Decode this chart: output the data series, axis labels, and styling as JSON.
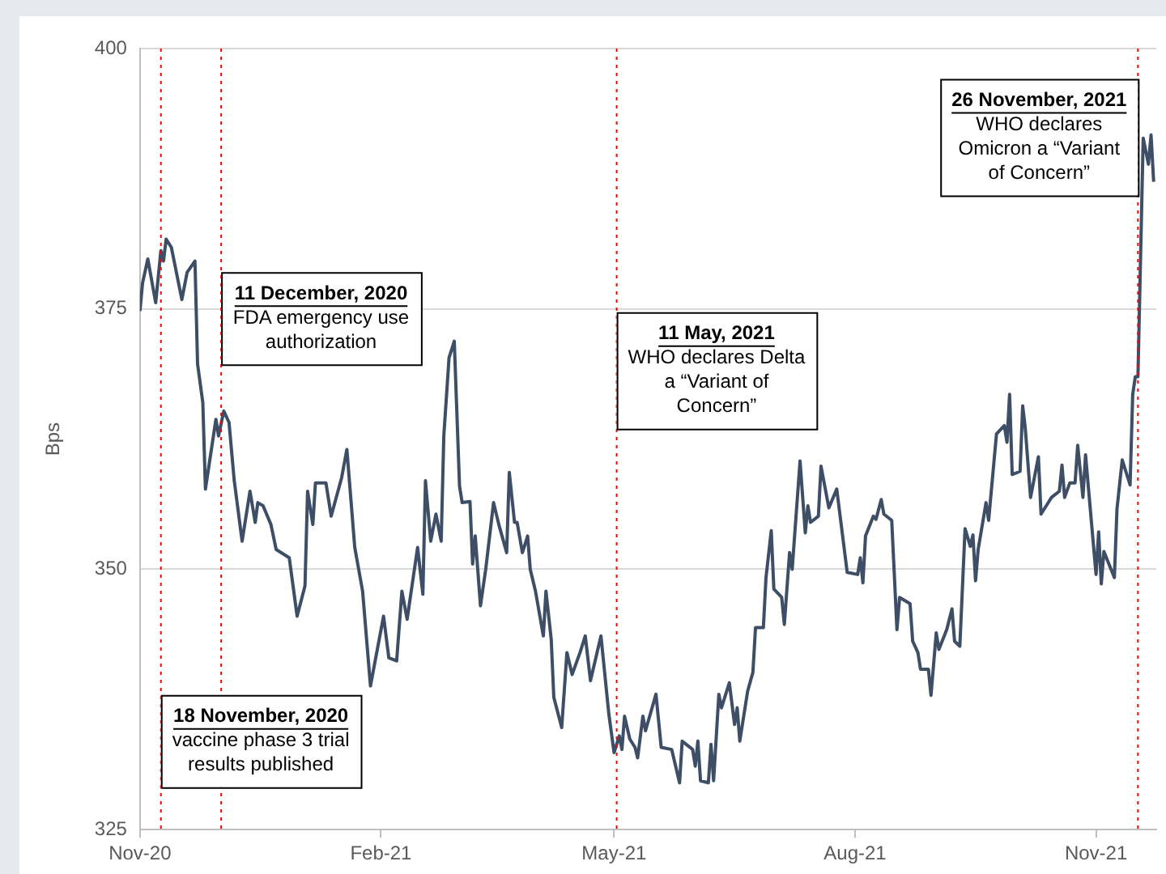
{
  "chart_data": {
    "type": "line",
    "ylabel": "Bps",
    "ylim": [
      325,
      400
    ],
    "yticks": [
      325,
      350,
      375,
      400
    ],
    "xlim": [
      "2020-11-10",
      "2021-12-03"
    ],
    "xticks": [
      {
        "value": "2020-11-10",
        "label": "Nov-20"
      },
      {
        "value": "2021-02-10",
        "label": "Feb-21"
      },
      {
        "value": "2021-05-10",
        "label": "May-21"
      },
      {
        "value": "2021-08-10",
        "label": "Aug-21"
      },
      {
        "value": "2021-11-10",
        "label": "Nov-21"
      }
    ],
    "grid": "y",
    "marker": "none",
    "line_style": "solid",
    "x": [
      "2020-11-10",
      "2020-11-11",
      "2020-11-13",
      "2020-11-16",
      "2020-11-18",
      "2020-11-19",
      "2020-11-20",
      "2020-11-22",
      "2020-11-26",
      "2020-11-28",
      "2020-12-01",
      "2020-12-02",
      "2020-12-04",
      "2020-12-05",
      "2020-12-09",
      "2020-12-10",
      "2020-12-12",
      "2020-12-14",
      "2020-12-16",
      "2020-12-19",
      "2020-12-22",
      "2020-12-24",
      "2020-12-25",
      "2020-12-27",
      "2020-12-30",
      "2021-01-01",
      "2021-01-06",
      "2021-01-09",
      "2021-01-12",
      "2021-01-13",
      "2021-01-15",
      "2021-01-16",
      "2021-01-20",
      "2021-01-22",
      "2021-01-26",
      "2021-01-28",
      "2021-01-31",
      "2021-02-03",
      "2021-02-06",
      "2021-02-11",
      "2021-02-13",
      "2021-02-16",
      "2021-02-18",
      "2021-02-20",
      "2021-02-24",
      "2021-02-26",
      "2021-02-27",
      "2021-03-01",
      "2021-03-03",
      "2021-03-05",
      "2021-03-06",
      "2021-03-08",
      "2021-03-10",
      "2021-03-12",
      "2021-03-13",
      "2021-03-16",
      "2021-03-17",
      "2021-03-18",
      "2021-03-20",
      "2021-03-22",
      "2021-03-25",
      "2021-03-27",
      "2021-03-30",
      "2021-03-31",
      "2021-04-02",
      "2021-04-03",
      "2021-04-05",
      "2021-04-07",
      "2021-04-08",
      "2021-04-10",
      "2021-04-13",
      "2021-04-14",
      "2021-04-16",
      "2021-04-17",
      "2021-04-20",
      "2021-04-22",
      "2021-04-24",
      "2021-04-27",
      "2021-04-29",
      "2021-05-01",
      "2021-05-05",
      "2021-05-08",
      "2021-05-10",
      "2021-05-12",
      "2021-05-13",
      "2021-05-14",
      "2021-05-16",
      "2021-05-18",
      "2021-05-19",
      "2021-05-21",
      "2021-05-22",
      "2021-05-26",
      "2021-05-28",
      "2021-06-01",
      "2021-06-04",
      "2021-06-05",
      "2021-06-09",
      "2021-06-10",
      "2021-06-11",
      "2021-06-12",
      "2021-06-15",
      "2021-06-16",
      "2021-06-17",
      "2021-06-19",
      "2021-06-20",
      "2021-06-23",
      "2021-06-25",
      "2021-06-26",
      "2021-06-27",
      "2021-06-30",
      "2021-07-02",
      "2021-07-03",
      "2021-07-06",
      "2021-07-07",
      "2021-07-09",
      "2021-07-10",
      "2021-07-13",
      "2021-07-14",
      "2021-07-16",
      "2021-07-17",
      "2021-07-20",
      "2021-07-22",
      "2021-07-23",
      "2021-07-24",
      "2021-07-27",
      "2021-07-28",
      "2021-07-31",
      "2021-08-03",
      "2021-08-07",
      "2021-08-11",
      "2021-08-12",
      "2021-08-13",
      "2021-08-14",
      "2021-08-17",
      "2021-08-18",
      "2021-08-20",
      "2021-08-21",
      "2021-08-24",
      "2021-08-26",
      "2021-08-27",
      "2021-08-31",
      "2021-09-01",
      "2021-09-03",
      "2021-09-04",
      "2021-09-07",
      "2021-09-08",
      "2021-09-10",
      "2021-09-11",
      "2021-09-14",
      "2021-09-16",
      "2021-09-17",
      "2021-09-19",
      "2021-09-21",
      "2021-09-23",
      "2021-09-24",
      "2021-09-25",
      "2021-09-26",
      "2021-09-29",
      "2021-09-30",
      "2021-10-03",
      "2021-10-06",
      "2021-10-07",
      "2021-10-08",
      "2021-10-09",
      "2021-10-12",
      "2021-10-13",
      "2021-10-14",
      "2021-10-16",
      "2021-10-19",
      "2021-10-20",
      "2021-10-22",
      "2021-10-24",
      "2021-10-27",
      "2021-10-28",
      "2021-10-29",
      "2021-10-31",
      "2021-11-02",
      "2021-11-03",
      "2021-11-05",
      "2021-11-06",
      "2021-11-07",
      "2021-11-10",
      "2021-11-11",
      "2021-11-12",
      "2021-11-13",
      "2021-11-17",
      "2021-11-18",
      "2021-11-20",
      "2021-11-23",
      "2021-11-24",
      "2021-11-25",
      "2021-11-26",
      "2021-11-28",
      "2021-11-30",
      "2021-12-01",
      "2021-12-02"
    ],
    "series": [
      {
        "color": "#3e4e66",
        "values": [
          374.8,
          377.5,
          379.8,
          375.6,
          380.6,
          379.6,
          381.7,
          380.9,
          375.9,
          378.5,
          379.6,
          369.7,
          366,
          357.7,
          364.4,
          362.8,
          365.2,
          364.1,
          358.5,
          352.7,
          357.5,
          354.5,
          356.4,
          356.1,
          354.3,
          351.9,
          351.1,
          345.5,
          348.4,
          357.5,
          354.3,
          358.3,
          358.3,
          355.1,
          358.8,
          361.5,
          352.1,
          347.9,
          338.8,
          345.5,
          341.5,
          341.2,
          347.9,
          345.2,
          352.1,
          347.6,
          358.5,
          352.7,
          355.3,
          352.7,
          362.8,
          370.3,
          371.9,
          358,
          356.4,
          356.5,
          350.5,
          353.2,
          346.5,
          350,
          356.4,
          354.3,
          351.6,
          359.3,
          354.5,
          354.5,
          351.6,
          353.2,
          350,
          347.9,
          343.6,
          347.9,
          343.3,
          337.7,
          334.8,
          342,
          339.9,
          342,
          343.6,
          339.3,
          343.6,
          336.1,
          332.4,
          334,
          332.7,
          335.9,
          333.7,
          332.9,
          331.9,
          335.9,
          334.5,
          338,
          332.9,
          332.7,
          329.5,
          333.5,
          332.7,
          331.1,
          333.5,
          329.7,
          329.5,
          333.2,
          329.7,
          338,
          336.7,
          339.1,
          335.1,
          336.7,
          333.5,
          338.3,
          340.1,
          344.4,
          344.4,
          349.2,
          353.7,
          348.1,
          347.3,
          344.7,
          351.6,
          350,
          360.4,
          353.5,
          356.1,
          354.5,
          355.1,
          359.9,
          355.9,
          357.7,
          349.7,
          349.5,
          351.1,
          348.7,
          353.2,
          355.1,
          354.8,
          356.7,
          355.3,
          354.7,
          344.2,
          347.3,
          346.7,
          343.1,
          342,
          340.4,
          340.4,
          337.9,
          343.9,
          342.3,
          344.2,
          346.2,
          343.1,
          342.6,
          353.9,
          352.2,
          353.3,
          348.9,
          351.9,
          356.4,
          354.7,
          363,
          363.8,
          362.2,
          366.8,
          359.1,
          359.4,
          365.7,
          363.5,
          356.9,
          360.8,
          355.3,
          356.1,
          356.9,
          357.5,
          360,
          356.9,
          358.3,
          358.3,
          361.9,
          356.9,
          361,
          358.1,
          349.5,
          353.6,
          348.6,
          351.7,
          349.2,
          355.8,
          360.5,
          358.1,
          366.8,
          368.5,
          368.5,
          391.4,
          388.9,
          391.7,
          387.2
        ]
      }
    ],
    "ref_lines": [
      {
        "axis": "x",
        "value": "2020-11-18",
        "color": "#ff0000",
        "line_style": "dotted"
      },
      {
        "axis": "x",
        "value": "2020-12-11",
        "color": "#ff0000",
        "line_style": "dotted"
      },
      {
        "axis": "x",
        "value": "2021-05-11",
        "color": "#ff0000",
        "line_style": "dotted"
      },
      {
        "axis": "x",
        "value": "2021-11-26",
        "color": "#ff0000",
        "line_style": "dotted"
      }
    ],
    "annotations": [
      {
        "text": "18 November, 2020\nvaccine phase 3 trial results published",
        "x": "2020-11-18",
        "y": 333.5
      },
      {
        "text": "11 December, 2020\nFDA emergency use authorization",
        "x": "2020-12-11",
        "y": 374.1
      },
      {
        "text": "11 May, 2021\nWHO declares Delta a “Variant of Concern”",
        "x": "2021-05-11",
        "y": 369.1
      },
      {
        "text": "26 November, 2021\nWHO declares Omicron a “Variant of Concern”",
        "x": "2021-11-26",
        "y": 391.5
      }
    ]
  }
}
